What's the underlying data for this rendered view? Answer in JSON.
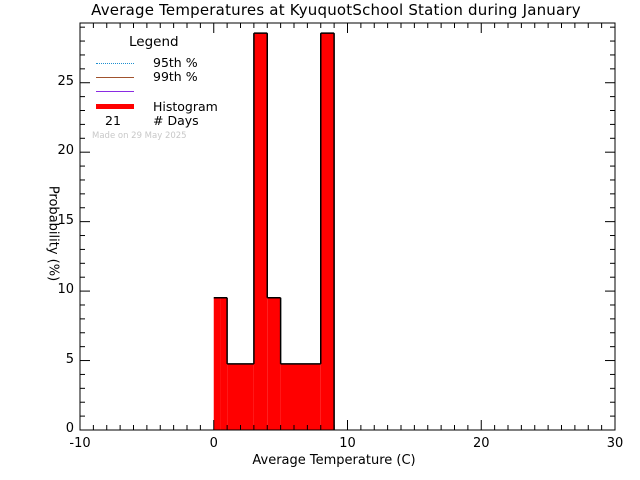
{
  "title": "Average Temperatures at KyuquotSchool Station during January",
  "xaxis": {
    "label": "Average Temperature (C)",
    "ticks": [
      "-10",
      "0",
      "10",
      "20",
      "30"
    ]
  },
  "yaxis": {
    "label": "Probability (%)",
    "ticks": [
      "0",
      "5",
      "10",
      "15",
      "20",
      "25"
    ]
  },
  "legend": {
    "title": "Legend",
    "items": [
      {
        "label": "95th %",
        "style": "dotted",
        "color": "#1e8fd0"
      },
      {
        "label": "99th %",
        "style": "solid",
        "color": "#a0522d"
      },
      {
        "label": "",
        "style": "solid",
        "color": "#8a2be2"
      },
      {
        "label": "Histogram",
        "style": "thick",
        "color": "#ff0000"
      }
    ],
    "days_count": "21",
    "days_label": "# Days"
  },
  "footnote": "Made on 29 May 2025",
  "chart_data": {
    "type": "bar",
    "title": "Average Temperatures at KyuquotSchool Station during January",
    "xlabel": "Average Temperature (C)",
    "ylabel": "Probability (%)",
    "xlim": [
      -10,
      30
    ],
    "ylim": [
      0,
      29.3
    ],
    "bin_width": 0.5,
    "bins": [
      {
        "x0": 0.0,
        "x1": 0.5,
        "value": 9.52
      },
      {
        "x0": 0.5,
        "x1": 1.0,
        "value": 9.52
      },
      {
        "x0": 1.0,
        "x1": 3.0,
        "value": 4.76
      },
      {
        "x0": 3.0,
        "x1": 4.0,
        "value": 28.57
      },
      {
        "x0": 4.0,
        "x1": 5.0,
        "value": 9.52
      },
      {
        "x0": 5.0,
        "x1": 8.0,
        "value": 4.76
      },
      {
        "x0": 8.0,
        "x1": 9.0,
        "value": 28.57
      }
    ],
    "categories": [
      "0-1",
      "1-2",
      "2-3",
      "3-4",
      "4-5",
      "5-6",
      "6-7",
      "7-8",
      "8-9"
    ],
    "values": [
      9.52,
      4.76,
      4.76,
      28.57,
      9.52,
      4.76,
      4.76,
      4.76,
      28.57
    ],
    "n_days": 21,
    "legend_position": "upper-left",
    "grid": false,
    "bar_color": "#ff0000"
  }
}
